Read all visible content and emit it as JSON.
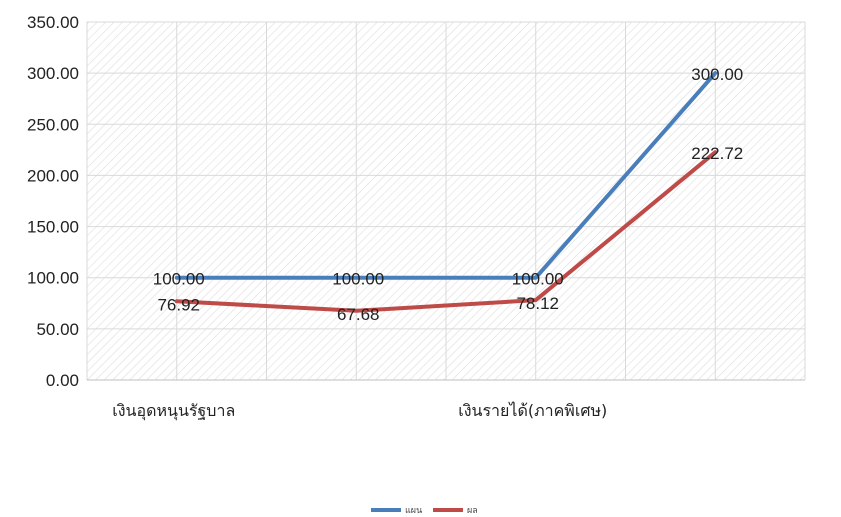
{
  "chart_data": {
    "type": "line",
    "categories": [
      "เงินอุดหนุนรัฐบาล",
      "",
      "เงินรายได้(ภาคพิเศษ)",
      ""
    ],
    "series": [
      {
        "name": "แผน",
        "color": "#4a7ebb",
        "values": [
          100.0,
          100.0,
          100.0,
          300.0
        ]
      },
      {
        "name": "ผล",
        "color": "#be4b48",
        "values": [
          76.92,
          67.68,
          78.12,
          222.72
        ]
      }
    ],
    "data_labels": {
      "แผน": [
        "100.00",
        "100.00",
        "100.00",
        "300.00"
      ],
      "ผล": [
        "76.92",
        "67.68",
        "78.12",
        "222.72"
      ]
    },
    "yticks": [
      "0.00",
      "50.00",
      "100.00",
      "150.00",
      "200.00",
      "250.00",
      "300.00",
      "350.00"
    ],
    "ylim": [
      0,
      350
    ],
    "grid": true,
    "legend": "bottom"
  }
}
